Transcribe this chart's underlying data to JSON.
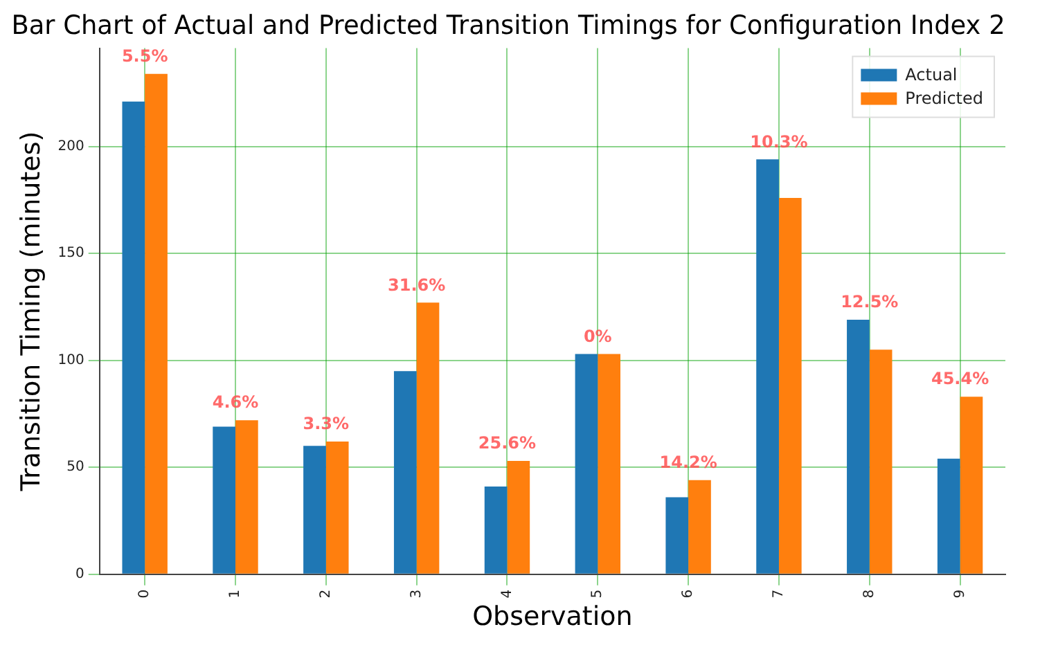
{
  "chart_data": {
    "type": "bar",
    "title": "Bar Chart of Actual and Predicted Transition Timings for Configuration Index 2",
    "xlabel": "Observation",
    "ylabel": "Transition Timing (minutes)",
    "categories": [
      "0",
      "1",
      "2",
      "3",
      "4",
      "5",
      "6",
      "7",
      "8",
      "9"
    ],
    "series": [
      {
        "name": "Actual",
        "color": "#1f77b4",
        "values": [
          221,
          69,
          60,
          95,
          41,
          103,
          36,
          194,
          119,
          54
        ]
      },
      {
        "name": "Predicted",
        "color": "#ff7f0e",
        "values": [
          234,
          72,
          62,
          127,
          53,
          103,
          44,
          176,
          105,
          83
        ]
      }
    ],
    "ylim": [
      0,
      246
    ],
    "yticks": [
      0,
      50,
      100,
      150,
      200
    ],
    "grid": true,
    "legend": "top right",
    "annotations": [
      {
        "text": "5.5%",
        "x": "0",
        "y": 234
      },
      {
        "text": "4.6%",
        "x": "1",
        "y": 72
      },
      {
        "text": "3.3%",
        "x": "2",
        "y": 62
      },
      {
        "text": "31.6%",
        "x": "3",
        "y": 127
      },
      {
        "text": "25.6%",
        "x": "4",
        "y": 53
      },
      {
        "text": "0%",
        "x": "5",
        "y": 103
      },
      {
        "text": "14.2%",
        "x": "6",
        "y": 44
      },
      {
        "text": "10.3%",
        "x": "7",
        "y": 194
      },
      {
        "text": "12.5%",
        "x": "8",
        "y": 119
      },
      {
        "text": "45.4%",
        "x": "9",
        "y": 83
      }
    ]
  }
}
